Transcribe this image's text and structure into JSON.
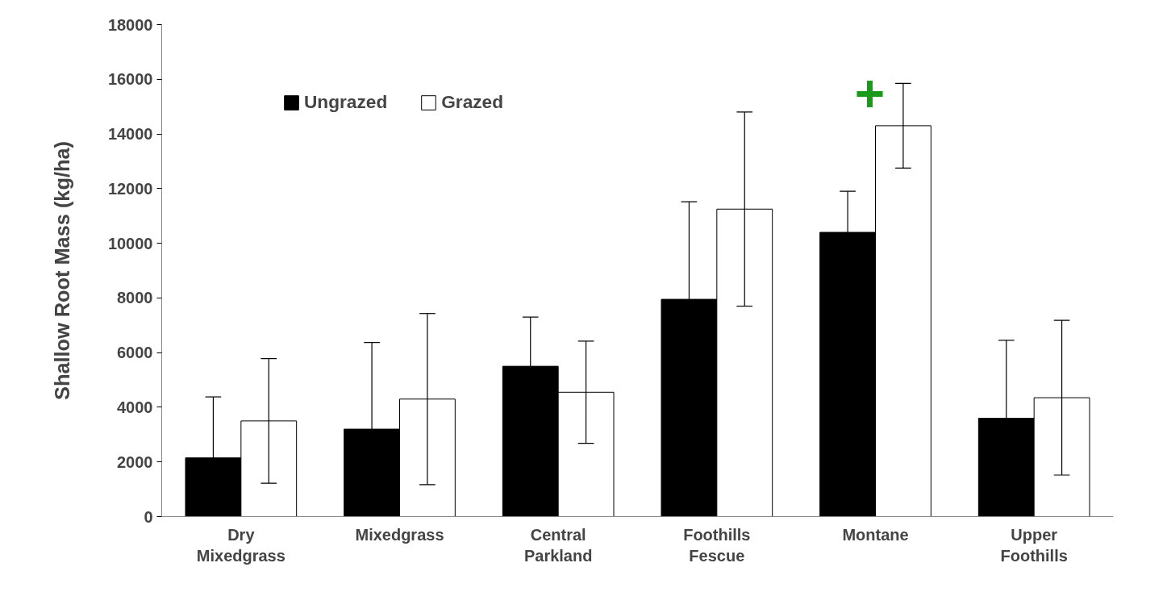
{
  "chart_data": {
    "type": "bar",
    "ylabel": "Shallow Root Mass (kg/ha)",
    "categories": [
      "Dry\nMixedgrass",
      "Mixedgrass",
      "Central\nParkland",
      "Foothills\nFescue",
      "Montane",
      "Upper\nFoothills"
    ],
    "series": [
      {
        "name": "Ungrazed",
        "color": "#000000",
        "values": [
          2150,
          3200,
          5500,
          7950,
          10400,
          3600
        ],
        "errors": [
          2230,
          3170,
          1800,
          3570,
          1500,
          2850
        ]
      },
      {
        "name": "Grazed",
        "color": "#ffffff",
        "values": [
          3500,
          4300,
          4550,
          11250,
          14300,
          4350
        ],
        "errors": [
          2280,
          3130,
          1870,
          3550,
          1550,
          2830
        ]
      }
    ],
    "ylim": [
      0,
      18000
    ],
    "yticks": [
      0,
      2000,
      4000,
      6000,
      8000,
      10000,
      12000,
      14000,
      16000,
      18000
    ],
    "annotations": [
      "+"
    ],
    "legend": "top left",
    "grid": false
  }
}
